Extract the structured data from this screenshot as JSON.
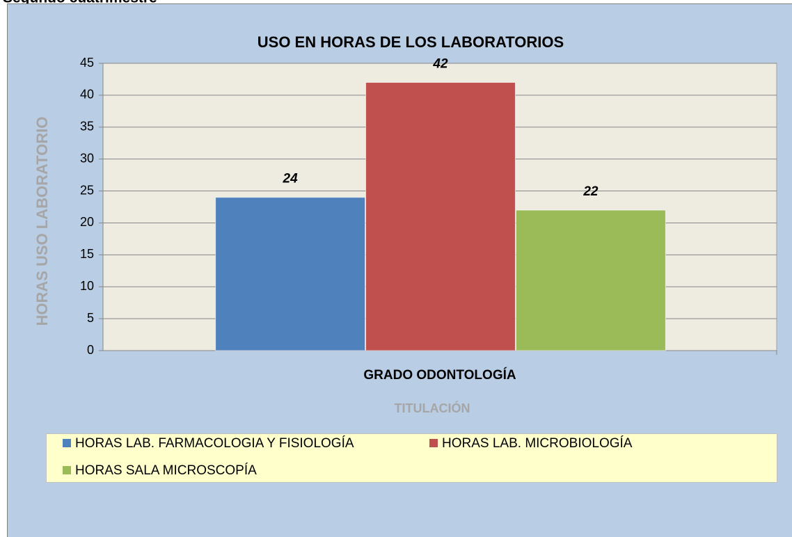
{
  "heading": "Segundo cuatrimestre",
  "chart_data": {
    "type": "bar",
    "title": "USO EN HORAS DE LOS LABORATORIOS",
    "categories": [
      "GRADO ODONTOLOGÍA"
    ],
    "series": [
      {
        "name": "HORAS LAB. FARMACOLOGIA Y FISIOLOGÍA",
        "color": "#4f81bd",
        "values": [
          24
        ]
      },
      {
        "name": "HORAS LAB. MICROBIOLOGÍA",
        "color": "#c0504d",
        "values": [
          42
        ]
      },
      {
        "name": "HORAS SALA MICROSCOPÍA",
        "color": "#9bbb59",
        "values": [
          22
        ]
      }
    ],
    "ylim": [
      0,
      45
    ],
    "yticks": [
      0,
      5,
      10,
      15,
      20,
      25,
      30,
      35,
      40,
      45
    ],
    "y_label": "HORAS USO LABORATORIO",
    "x_label": "TITULACIÓN",
    "grid": true,
    "legend": "bottom"
  }
}
